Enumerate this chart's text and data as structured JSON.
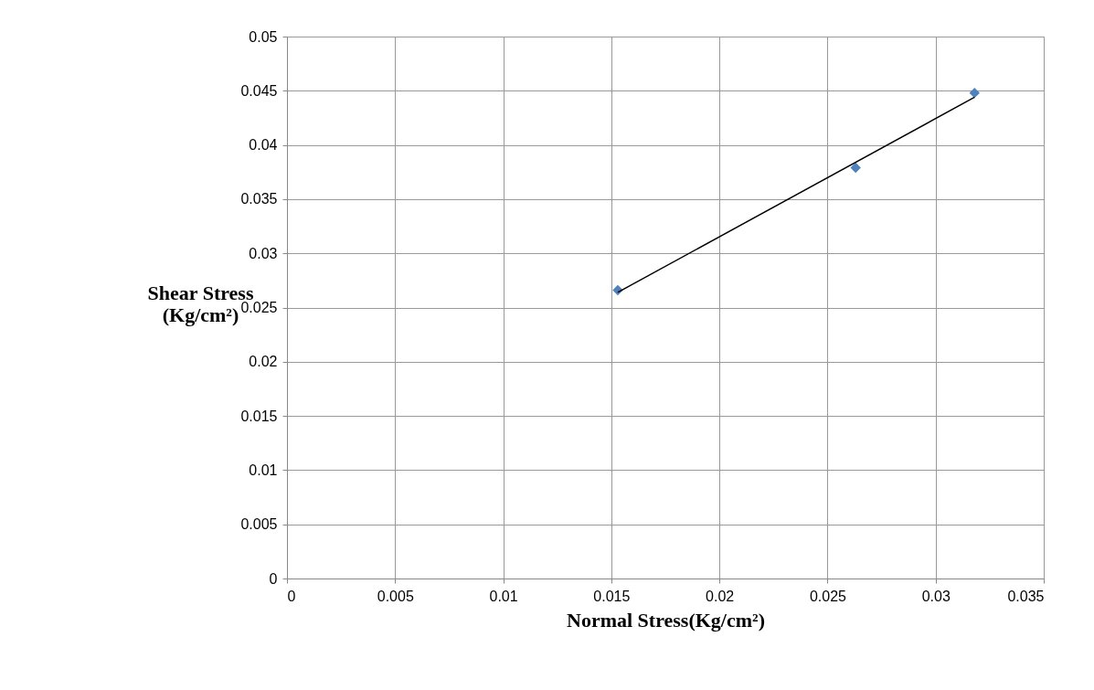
{
  "chart_data": {
    "type": "scatter",
    "xlabel": "Normal Stress(Kg/cm²)",
    "ylabel": "Shear Stress (Kg/cm²)",
    "xlim": [
      0,
      0.035
    ],
    "xticks": [
      0,
      0.005,
      0.01,
      0.015,
      0.02,
      0.025,
      0.03,
      0.035
    ],
    "ylim": [
      0,
      0.05
    ],
    "yticks": [
      0,
      0.005,
      0.01,
      0.015,
      0.02,
      0.025,
      0.03,
      0.035,
      0.04,
      0.045,
      0.05
    ],
    "grid": true,
    "series": [
      {
        "color": "#4f81bd",
        "marker": "diamond",
        "x": [
          0.0153,
          0.0263,
          0.0318
        ],
        "values": [
          0.0266,
          0.0379,
          0.0448
        ]
      },
      {
        "type": "line",
        "marker": "none",
        "line_style": "solid",
        "color": "#000000",
        "x": [
          0.0153,
          0.0318
        ],
        "values": [
          0.0264,
          0.0444
        ]
      }
    ]
  }
}
